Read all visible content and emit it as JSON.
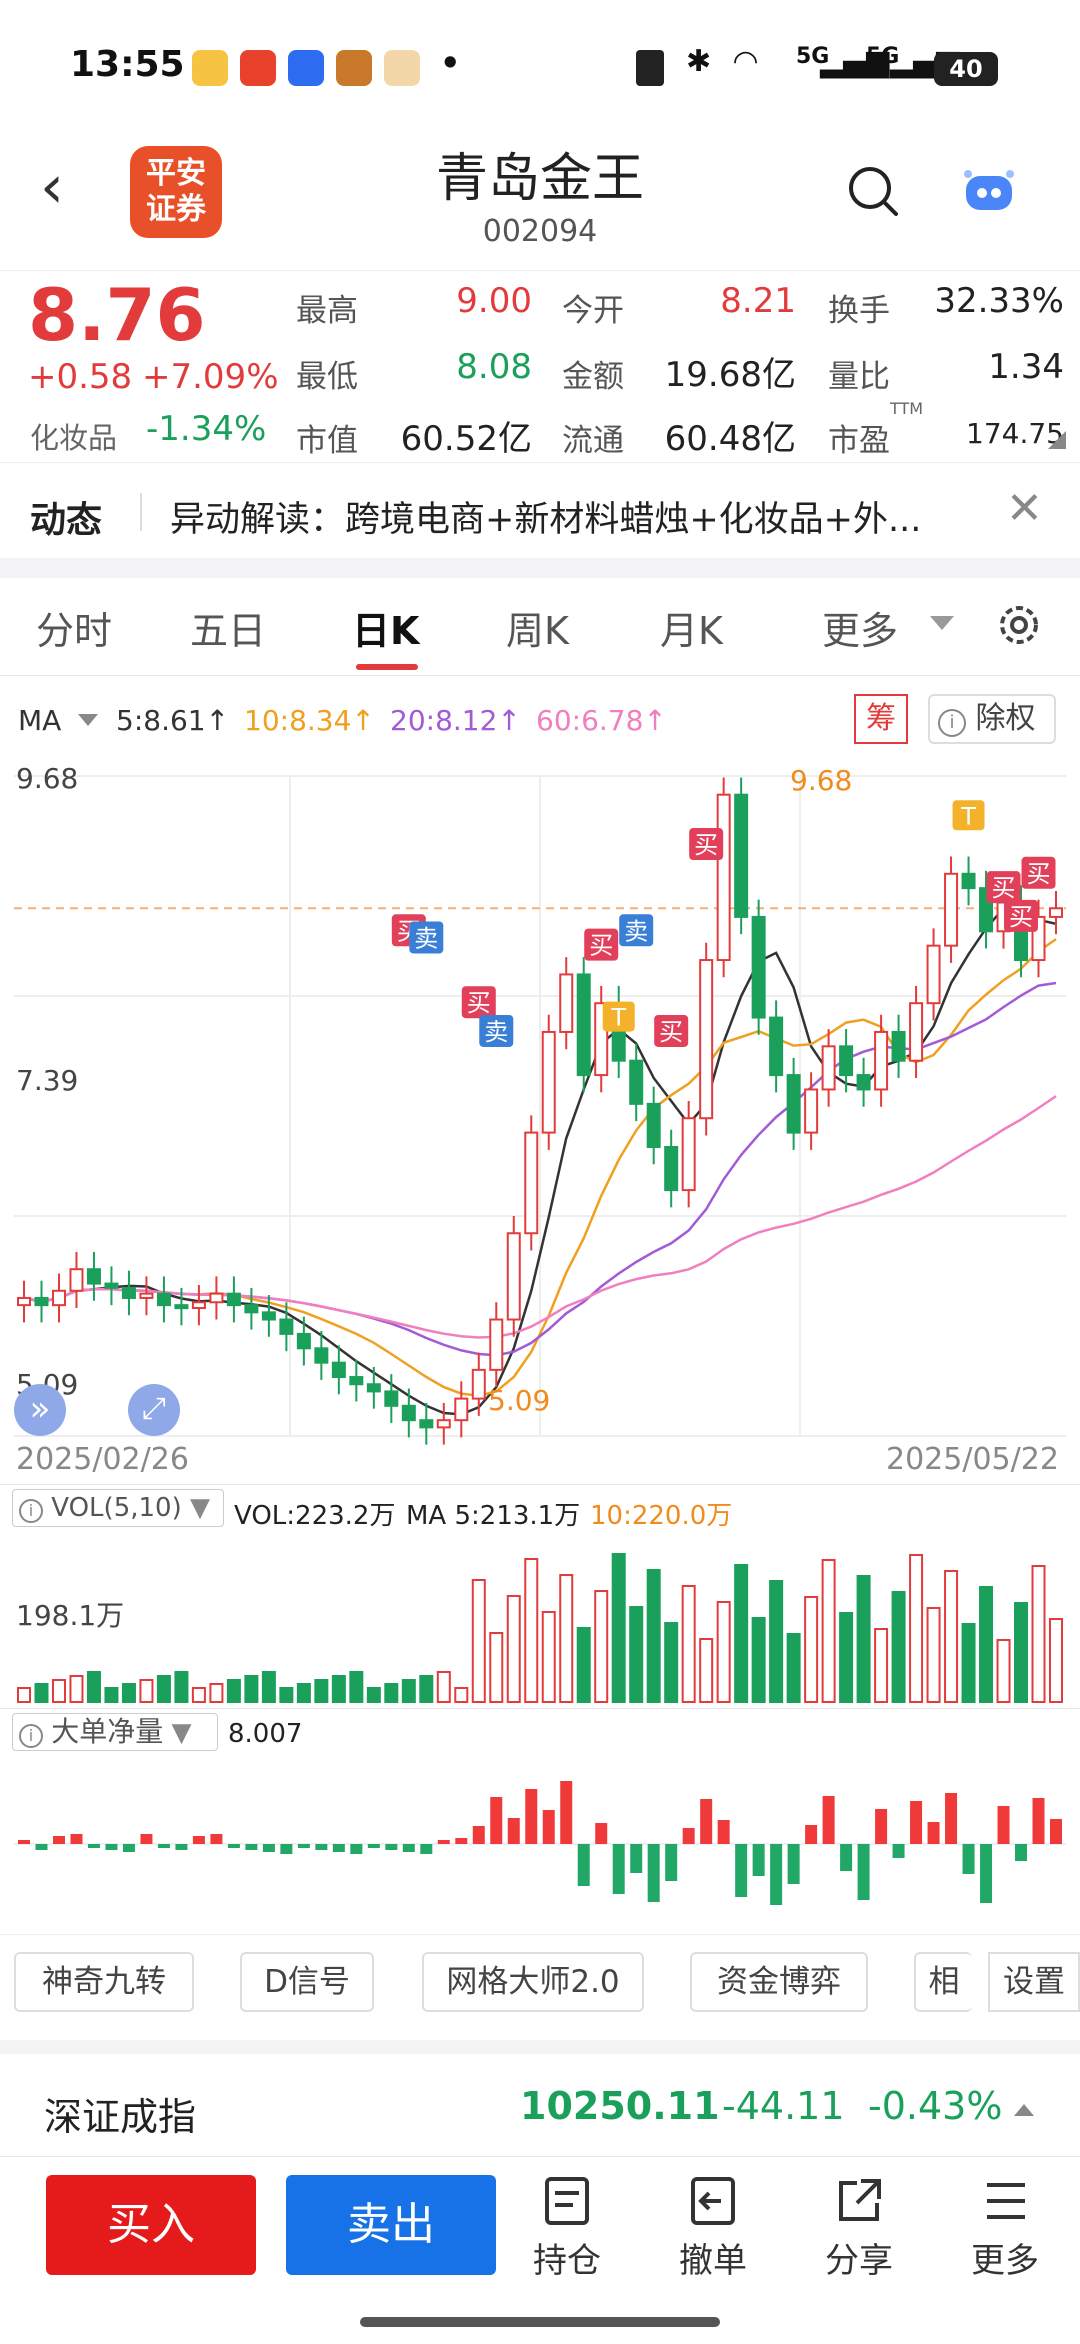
{
  "status_bar": {
    "time": "13:55",
    "dot": "•",
    "net1": "5G",
    "net2": "5G",
    "battery": "40"
  },
  "header": {
    "logo_line1": "平安",
    "logo_line2": "证券",
    "title": "青岛金王",
    "code": "002094"
  },
  "quote": {
    "price": "8.76",
    "change": "+0.58",
    "change_pct": "+7.09%",
    "sector": "化妆品",
    "sector_pct": "-1.34%",
    "high_label": "最高",
    "high": "9.00",
    "low_label": "最低",
    "low": "8.08",
    "cap_label": "市值",
    "cap": "60.52亿",
    "open_label": "今开",
    "open": "8.21",
    "amount_label": "金额",
    "amount": "19.68亿",
    "float_label": "流通",
    "float": "60.48亿",
    "turnover_label": "换手",
    "turnover": "32.33%",
    "vratio_label": "量比",
    "vratio": "1.34",
    "pe_label": "市盈",
    "pe_sup": "TTM",
    "pe": "174.75"
  },
  "news": {
    "tag": "动态",
    "text": "异动解读：跨境电商+新材料蜡烛+化妆品+外..."
  },
  "tabs": [
    {
      "label": "分时"
    },
    {
      "label": "五日"
    },
    {
      "label": "日K"
    },
    {
      "label": "周K"
    },
    {
      "label": "月K"
    },
    {
      "label": "更多"
    }
  ],
  "ma": {
    "label": "MA",
    "ma5": "5:8.61↑",
    "ma10": "10:8.34↑",
    "ma20": "20:8.12↑",
    "ma60": "60:6.78↑",
    "chip": "筹",
    "fq": "除权"
  },
  "chart": {
    "y_top": "9.68",
    "y_mid": "7.39",
    "y_bot": "5.09",
    "high_mark": "9.68",
    "low_mark": "5.09",
    "date_start": "2025/02/26",
    "date_end": "2025/05/22",
    "buy": "买",
    "sell": "卖",
    "t": "T"
  },
  "vol": {
    "label": "VOL(5,10)",
    "vol": "VOL:223.2万",
    "ma5": "MA 5:213.1万",
    "ma10": "10:220.0万",
    "y": "198.1万"
  },
  "flow": {
    "label": "大单净量",
    "value": "8.007"
  },
  "tools": [
    {
      "label": "神奇九转"
    },
    {
      "label": "D信号"
    },
    {
      "label": "网格大师2.0"
    },
    {
      "label": "资金博弈"
    },
    {
      "label": "相"
    },
    {
      "label": "设置"
    }
  ],
  "index": {
    "name": "深证成指",
    "value": "10250.11",
    "change": "-44.11",
    "pct": "-0.43%"
  },
  "bottom": {
    "buy": "买入",
    "sell": "卖出",
    "hold": "持仓",
    "cancel": "撤单",
    "share": "分享",
    "more": "更多"
  },
  "colors": {
    "up": "#e23b3b",
    "down": "#1aa05a",
    "ma5": "#333333",
    "ma10": "#f0a020",
    "ma20": "#a35ad6",
    "ma60": "#f07fc0"
  }
}
